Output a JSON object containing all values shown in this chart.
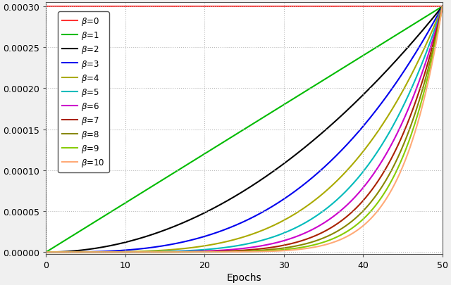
{
  "title": "",
  "xlabel": "Epochs",
  "ylabel": "",
  "lr_max": 0.0003,
  "epochs": 50,
  "betas": [
    0,
    1,
    2,
    3,
    4,
    5,
    6,
    7,
    8,
    9,
    10
  ],
  "colors": [
    "#ff3333",
    "#00bb00",
    "#000000",
    "#0000ee",
    "#aaaa00",
    "#00bbbb",
    "#cc00cc",
    "#aa2200",
    "#888800",
    "#88cc00",
    "#ffaa77"
  ],
  "ylim": [
    -2e-06,
    0.000305
  ],
  "xlim": [
    0,
    50
  ],
  "xticks": [
    0,
    10,
    20,
    30,
    40,
    50
  ],
  "yticks": [
    0.0,
    5e-05,
    0.0001,
    0.00015,
    0.0002,
    0.00025,
    0.0003
  ],
  "grid_color": "#bbbbbb",
  "background_color": "#f0f0f0",
  "axes_background": "#ffffff",
  "legend_labels": [
    "β=0",
    "β=1",
    "β=2",
    "β=3",
    "β=4",
    "β=5",
    "β=6",
    "β=7",
    "β=8",
    "β=9",
    "β=10"
  ],
  "figsize": [
    6.4,
    4.06
  ],
  "dpi": 100
}
